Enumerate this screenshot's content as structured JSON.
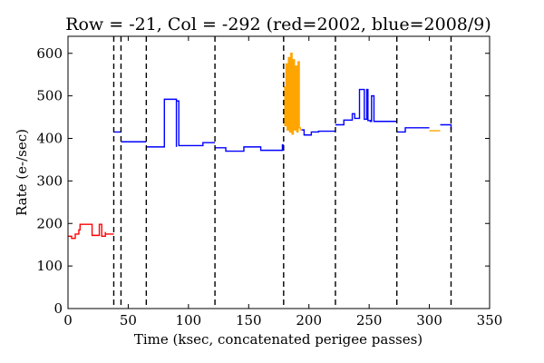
{
  "chart_data": {
    "type": "line",
    "title": "Row = -21, Col = -292 (red=2002, blue=2008/9)",
    "xlabel": "Time (ksec, concatenated perigee passes)",
    "ylabel": "Rate (e-/sec)",
    "xlim": [
      0,
      350
    ],
    "ylim": [
      0,
      640
    ],
    "xticks": [
      0,
      50,
      100,
      150,
      200,
      250,
      300,
      350
    ],
    "yticks": [
      0,
      100,
      200,
      300,
      400,
      500,
      600
    ],
    "grid": false,
    "vlines": [
      38,
      44,
      65,
      122,
      179,
      222,
      273,
      318
    ],
    "colors": {
      "red": "#ff0000",
      "blue": "#0000ff",
      "orange": "#ffa500"
    },
    "series": [
      {
        "color": "red",
        "x": [
          0,
          3,
          3,
          6,
          6,
          9,
          9,
          10,
          10,
          20,
          20,
          26,
          26,
          26,
          26,
          28,
          28,
          31,
          31,
          31,
          31,
          38
        ],
        "y": [
          170,
          170,
          165,
          165,
          175,
          175,
          185,
          185,
          198,
          198,
          172,
          172,
          198,
          198,
          198,
          198,
          170,
          170,
          180,
          180,
          175,
          175
        ]
      },
      {
        "color": "blue",
        "x": [
          38,
          44
        ],
        "y": [
          415,
          415
        ]
      },
      {
        "color": "blue",
        "x": [
          44,
          65
        ],
        "y": [
          392,
          392
        ]
      },
      {
        "color": "blue",
        "x": [
          65,
          80,
          80,
          90,
          90,
          90,
          90,
          92,
          92,
          92,
          92,
          112,
          112,
          122
        ],
        "y": [
          380,
          380,
          492,
          492,
          380,
          380,
          488,
          488,
          383,
          383,
          383,
          383,
          390,
          390
        ]
      },
      {
        "color": "blue",
        "x": [
          122,
          131,
          131,
          146,
          146,
          160,
          160,
          178,
          178,
          179
        ],
        "y": [
          378,
          378,
          370,
          370,
          380,
          380,
          372,
          372,
          385,
          385
        ]
      },
      {
        "color": "orange",
        "x": [
          179,
          180,
          180,
          181,
          181,
          182,
          182,
          183,
          183,
          184,
          184,
          185,
          185,
          186,
          186,
          187,
          187,
          188,
          188,
          189,
          189,
          190,
          190,
          191,
          191,
          192,
          192,
          193,
          193,
          194
        ],
        "y": [
          520,
          520,
          430,
          430,
          575,
          575,
          420,
          420,
          590,
          590,
          415,
          415,
          600,
          600,
          410,
          410,
          585,
          585,
          420,
          420,
          570,
          570,
          415,
          415,
          580,
          580,
          425,
          425,
          420,
          420
        ]
      },
      {
        "color": "blue",
        "x": [
          194,
          196,
          196,
          202,
          202,
          208,
          208,
          222
        ],
        "y": [
          420,
          420,
          408,
          408,
          415,
          415,
          417,
          417
        ]
      },
      {
        "color": "blue",
        "x": [
          222,
          229,
          229,
          236,
          236,
          238,
          238,
          242,
          242,
          246,
          246,
          248,
          248,
          249,
          249,
          251,
          251,
          252,
          252,
          254,
          254,
          255,
          255,
          273
        ],
        "y": [
          432,
          432,
          443,
          443,
          458,
          458,
          447,
          447,
          515,
          515,
          445,
          445,
          515,
          515,
          442,
          442,
          440,
          440,
          500,
          500,
          440,
          440,
          440,
          440
        ]
      },
      {
        "color": "blue",
        "x": [
          273,
          280,
          280,
          300
        ],
        "y": [
          415,
          415,
          425,
          425
        ]
      },
      {
        "color": "orange",
        "x": [
          300,
          309
        ],
        "y": [
          418,
          418
        ]
      },
      {
        "color": "blue",
        "x": [
          309,
          318,
          318
        ],
        "y": [
          432,
          432,
          420
        ]
      }
    ]
  }
}
